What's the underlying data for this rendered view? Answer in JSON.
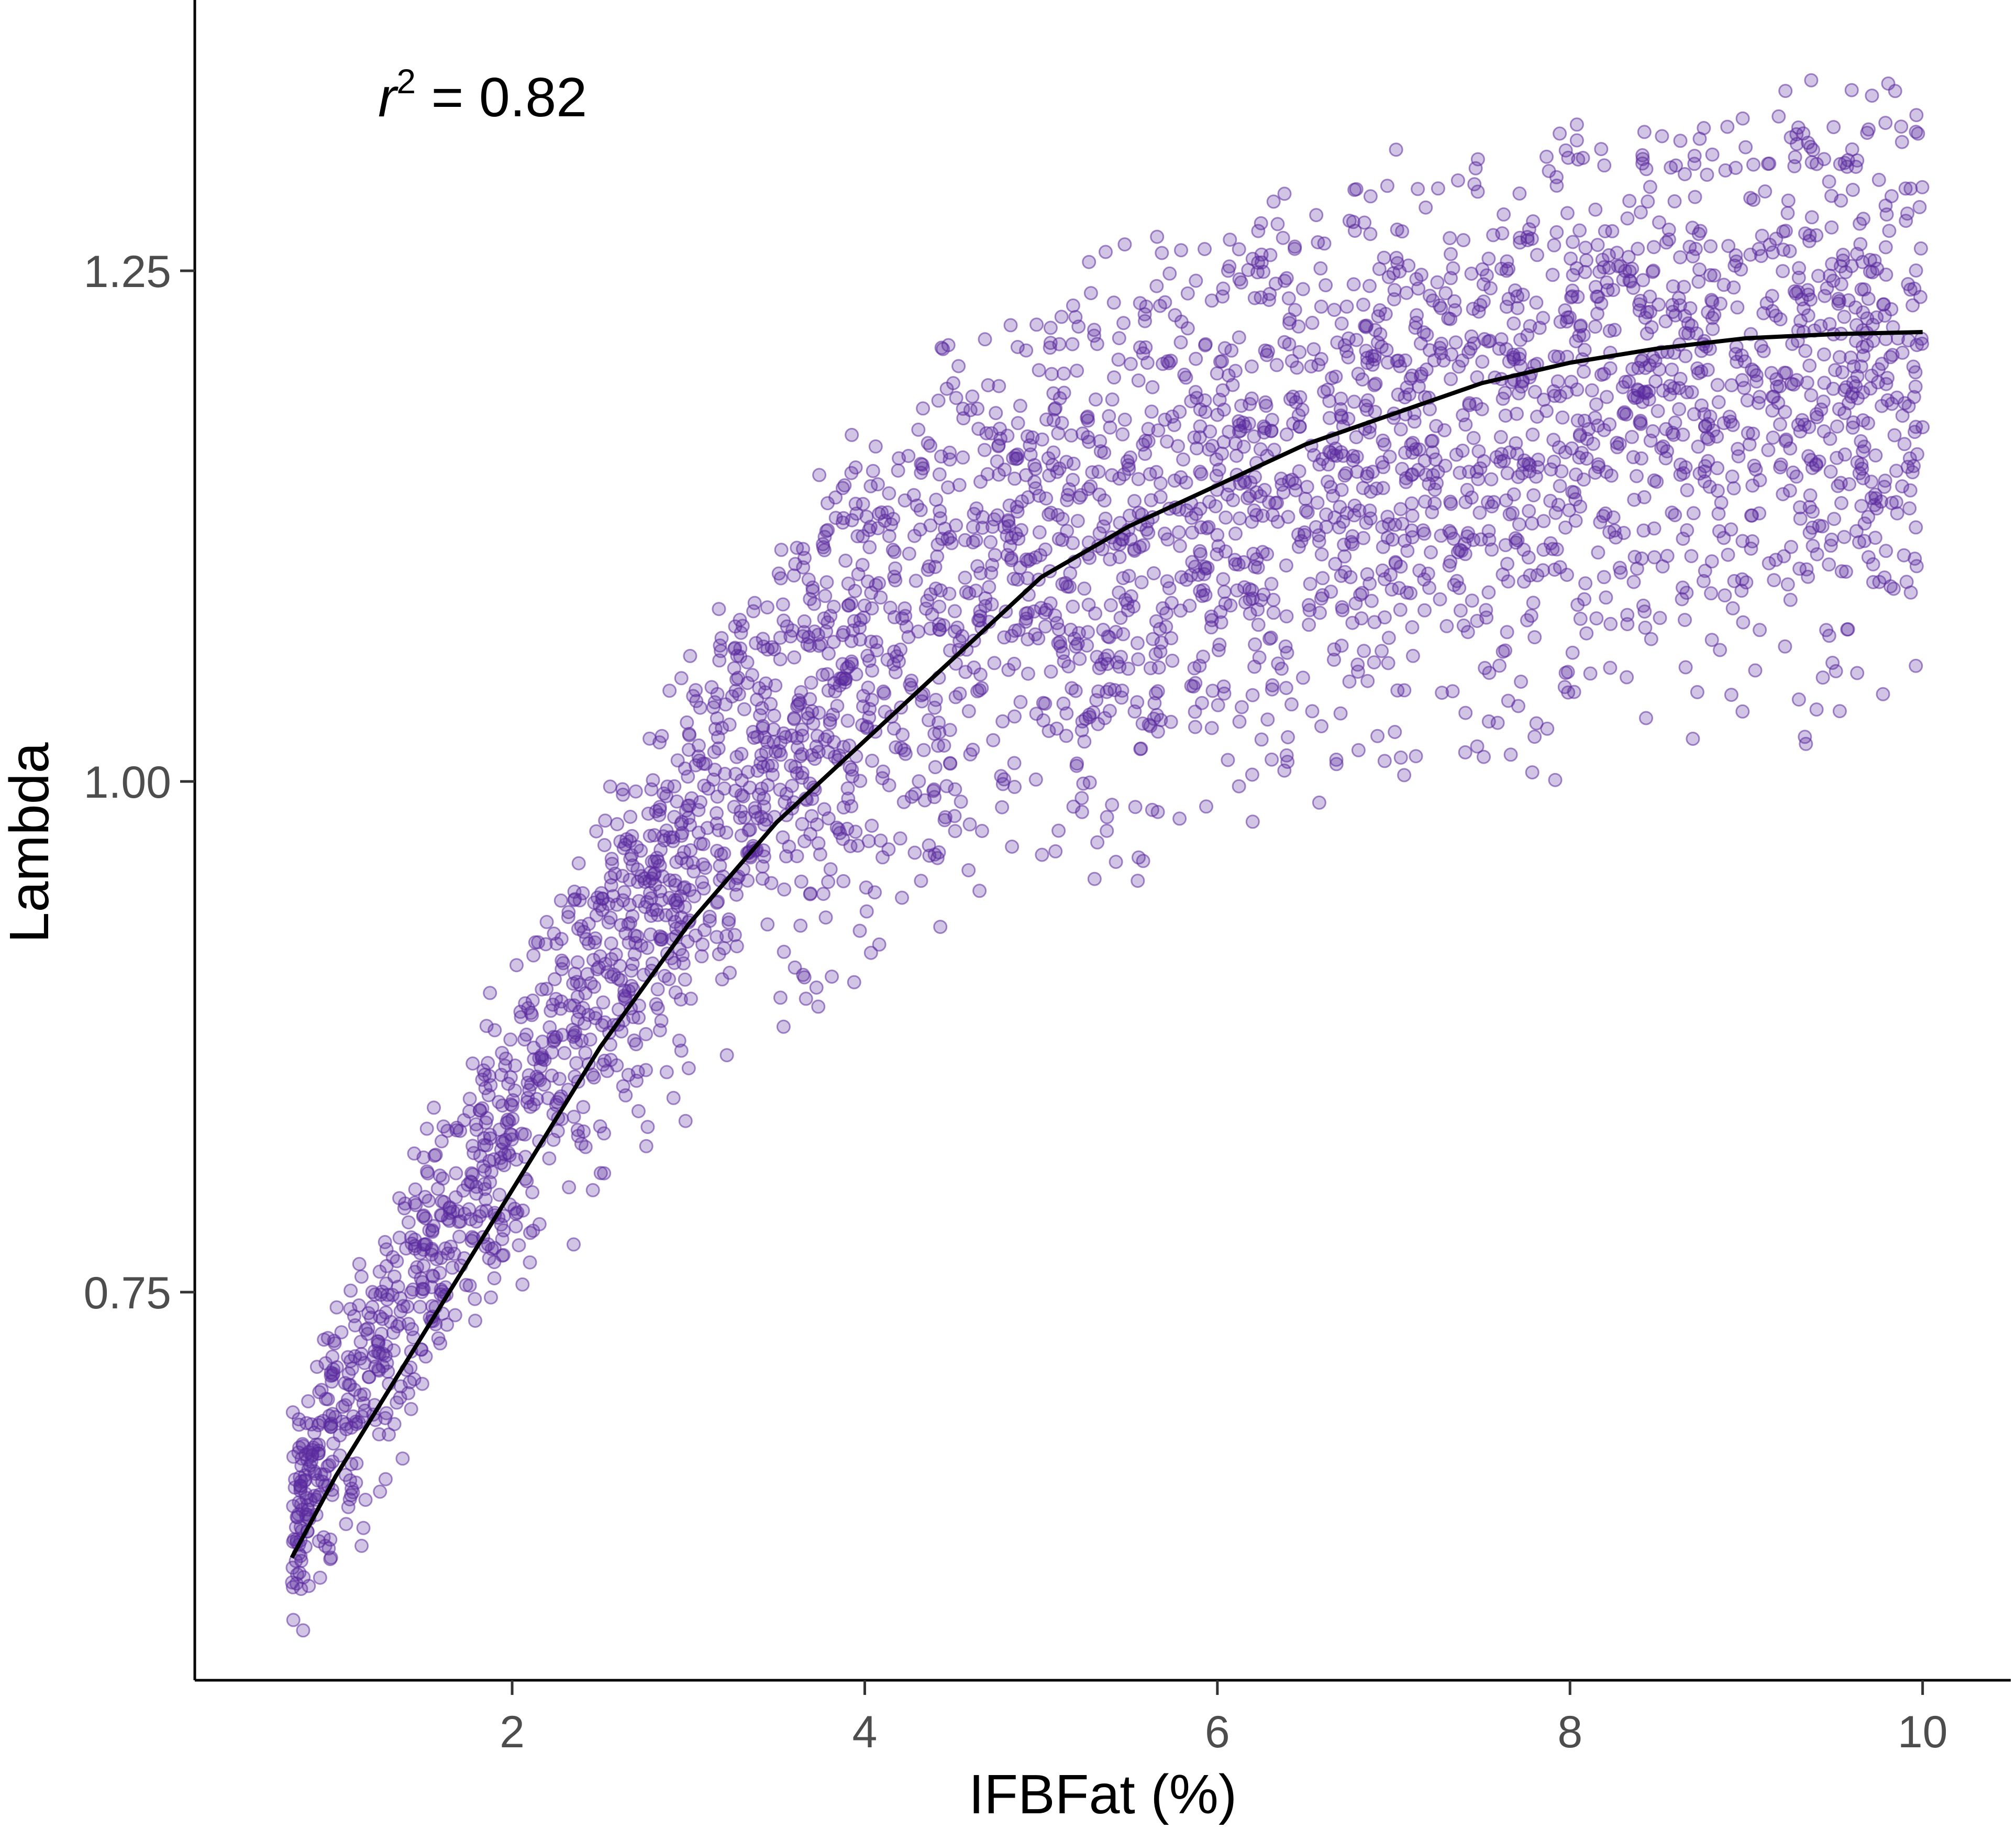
{
  "chart_data": {
    "type": "scatter",
    "title": "",
    "xlabel": "IFBFat (%)",
    "ylabel": "Lambda",
    "xlim": [
      0.2,
      10.5
    ],
    "ylim": [
      0.56,
      1.38
    ],
    "x_ticks": [
      2,
      4,
      6,
      8,
      10
    ],
    "x_tick_labels": [
      "2",
      "4",
      "6",
      "8",
      "10"
    ],
    "y_ticks": [
      0.75,
      1.0,
      1.25
    ],
    "y_tick_labels": [
      "0.75",
      "1.00",
      "1.25"
    ],
    "grid": false,
    "annotation": {
      "symbol": "r",
      "superscript": "2",
      "equals_value": " = 0.82"
    },
    "point_color": "#5b2a9e",
    "point_alpha": 0.3,
    "point_count_approx": 10000,
    "x_range_points": [
      0.75,
      10.0
    ],
    "series": [
      {
        "kind": "scatter-envelope",
        "x": [
          0.75,
          1.0,
          1.5,
          2.0,
          2.5,
          3.0,
          3.5,
          4.0,
          4.5,
          5.0,
          6.0,
          7.0,
          8.0,
          9.0,
          10.0
        ],
        "upper": [
          0.67,
          0.74,
          0.82,
          0.9,
          0.98,
          1.05,
          1.11,
          1.16,
          1.2,
          1.23,
          1.26,
          1.29,
          1.31,
          1.32,
          1.33
        ],
        "lower": [
          0.58,
          0.62,
          0.69,
          0.75,
          0.8,
          0.85,
          0.88,
          0.91,
          0.93,
          0.95,
          0.98,
          1.01,
          1.02,
          1.03,
          1.04
        ]
      },
      {
        "kind": "fit-line",
        "x": [
          0.75,
          1.0,
          1.5,
          2.0,
          2.5,
          3.0,
          3.5,
          4.0,
          4.5,
          5.0,
          5.5,
          6.0,
          6.5,
          7.0,
          7.5,
          8.0,
          8.5,
          9.0,
          9.5,
          10.0
        ],
        "y": [
          0.62,
          0.66,
          0.73,
          0.8,
          0.87,
          0.93,
          0.98,
          1.02,
          1.06,
          1.1,
          1.125,
          1.145,
          1.165,
          1.18,
          1.195,
          1.205,
          1.212,
          1.217,
          1.219,
          1.22
        ],
        "color": "#000000"
      }
    ]
  }
}
